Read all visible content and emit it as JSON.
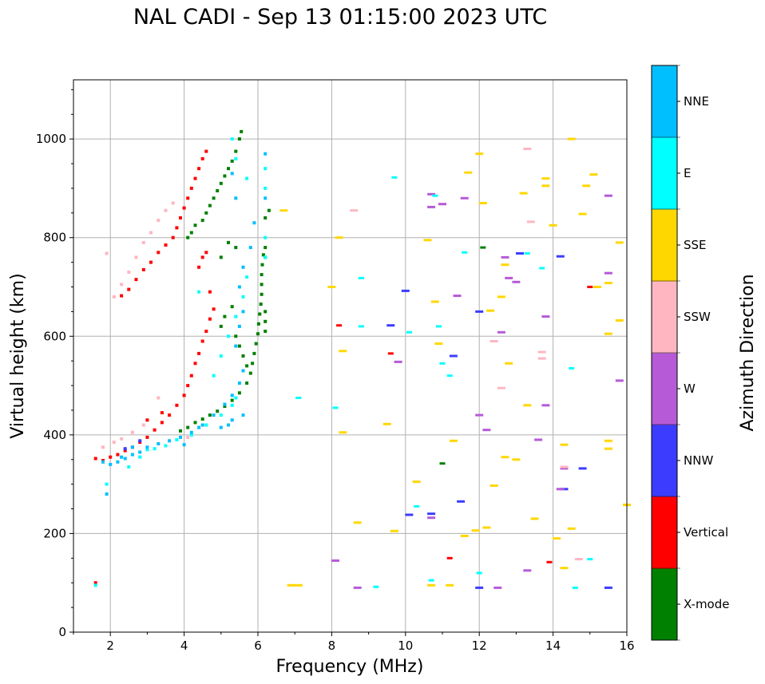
{
  "chart_data": {
    "type": "scatter",
    "title": "NAL CADI - Sep 13 01:15:00 2023 UTC",
    "xlabel": "Frequency (MHz)",
    "ylabel": "Virtual height (km)",
    "xlim": [
      1,
      16
    ],
    "ylim": [
      0,
      1120
    ],
    "xticks": [
      2,
      4,
      6,
      8,
      10,
      12,
      14,
      16
    ],
    "yticks": [
      0,
      200,
      400,
      600,
      800,
      1000
    ],
    "grid": true,
    "colorbar": {
      "label": "Azimuth Direction",
      "categories": [
        "X-mode",
        "Vertical",
        "NNW",
        "W",
        "SSW",
        "SSE",
        "E",
        "NNE"
      ],
      "colors": [
        "#008000",
        "#ff0000",
        "#3c3cff",
        "#b65ad8",
        "#ffb6c1",
        "#ffd700",
        "#00ffff",
        "#00bfff"
      ]
    },
    "series": [
      {
        "name": "X-mode",
        "points": [
          [
            3.9,
            408
          ],
          [
            4.1,
            415
          ],
          [
            4.3,
            425
          ],
          [
            4.5,
            432
          ],
          [
            4.7,
            440
          ],
          [
            4.9,
            448
          ],
          [
            5.1,
            458
          ],
          [
            5.3,
            470
          ],
          [
            5.5,
            485
          ],
          [
            5.7,
            505
          ],
          [
            5.8,
            525
          ],
          [
            5.85,
            545
          ],
          [
            5.9,
            565
          ],
          [
            5.95,
            585
          ],
          [
            6.0,
            605
          ],
          [
            6.02,
            625
          ],
          [
            6.05,
            645
          ],
          [
            6.08,
            665
          ],
          [
            6.1,
            685
          ],
          [
            6.1,
            705
          ],
          [
            6.1,
            725
          ],
          [
            6.12,
            745
          ],
          [
            6.15,
            765
          ],
          [
            5.0,
            620
          ],
          [
            5.1,
            640
          ],
          [
            5.3,
            660
          ],
          [
            5.4,
            600
          ],
          [
            5.5,
            580
          ],
          [
            5.6,
            560
          ],
          [
            5.7,
            540
          ],
          [
            6.2,
            650
          ],
          [
            6.2,
            630
          ],
          [
            6.2,
            610
          ],
          [
            6.2,
            760
          ],
          [
            6.2,
            780
          ],
          [
            4.1,
            800
          ],
          [
            4.2,
            810
          ],
          [
            4.3,
            825
          ],
          [
            4.5,
            835
          ],
          [
            4.6,
            850
          ],
          [
            4.7,
            865
          ],
          [
            4.8,
            880
          ],
          [
            4.9,
            895
          ],
          [
            5.0,
            910
          ],
          [
            5.1,
            925
          ],
          [
            5.2,
            940
          ],
          [
            5.3,
            955
          ],
          [
            5.4,
            975
          ],
          [
            5.5,
            1000
          ],
          [
            5.55,
            1015
          ],
          [
            6.2,
            840
          ],
          [
            6.3,
            855
          ],
          [
            5.0,
            760
          ],
          [
            5.2,
            790
          ],
          [
            5.4,
            780
          ],
          [
            11.0,
            342
          ],
          [
            12.1,
            780
          ]
        ]
      },
      {
        "name": "Vertical",
        "points": [
          [
            1.6,
            352
          ],
          [
            1.8,
            348
          ],
          [
            2.0,
            355
          ],
          [
            2.2,
            360
          ],
          [
            2.4,
            368
          ],
          [
            2.6,
            375
          ],
          [
            2.8,
            385
          ],
          [
            3.0,
            395
          ],
          [
            3.2,
            410
          ],
          [
            3.4,
            425
          ],
          [
            3.6,
            440
          ],
          [
            3.8,
            460
          ],
          [
            4.0,
            480
          ],
          [
            4.1,
            500
          ],
          [
            4.2,
            520
          ],
          [
            4.3,
            545
          ],
          [
            4.4,
            565
          ],
          [
            4.5,
            590
          ],
          [
            4.6,
            610
          ],
          [
            4.7,
            635
          ],
          [
            4.8,
            655
          ],
          [
            2.3,
            682
          ],
          [
            2.5,
            695
          ],
          [
            2.7,
            715
          ],
          [
            2.9,
            735
          ],
          [
            3.1,
            750
          ],
          [
            3.3,
            770
          ],
          [
            3.5,
            785
          ],
          [
            3.7,
            800
          ],
          [
            3.8,
            820
          ],
          [
            3.9,
            840
          ],
          [
            4.0,
            860
          ],
          [
            4.1,
            880
          ],
          [
            4.2,
            900
          ],
          [
            4.3,
            920
          ],
          [
            4.4,
            940
          ],
          [
            4.5,
            960
          ],
          [
            4.6,
            975
          ],
          [
            4.4,
            740
          ],
          [
            4.5,
            760
          ],
          [
            4.6,
            770
          ],
          [
            1.6,
            100
          ],
          [
            8.2,
            622
          ],
          [
            9.6,
            565
          ],
          [
            11.2,
            150
          ],
          [
            13.9,
            142
          ],
          [
            15.0,
            700
          ],
          [
            3.0,
            430
          ],
          [
            3.4,
            445
          ],
          [
            4.7,
            690
          ]
        ]
      },
      {
        "name": "NNW",
        "points": [
          [
            2.4,
            372
          ],
          [
            2.8,
            388
          ],
          [
            9.6,
            622
          ],
          [
            10.1,
            238
          ],
          [
            10.7,
            240
          ],
          [
            11.5,
            265
          ],
          [
            12.0,
            650
          ],
          [
            12.0,
            90
          ],
          [
            13.1,
            768
          ],
          [
            14.2,
            762
          ],
          [
            14.3,
            290
          ],
          [
            14.8,
            332
          ],
          [
            15.5,
            90
          ],
          [
            10.0,
            692
          ],
          [
            11.3,
            560
          ]
        ]
      },
      {
        "name": "W",
        "points": [
          [
            8.1,
            145
          ],
          [
            8.7,
            90
          ],
          [
            9.8,
            548
          ],
          [
            10.7,
            862
          ],
          [
            10.7,
            888
          ],
          [
            11.0,
            868
          ],
          [
            11.6,
            880
          ],
          [
            12.0,
            440
          ],
          [
            12.2,
            410
          ],
          [
            12.5,
            90
          ],
          [
            12.8,
            718
          ],
          [
            13.0,
            710
          ],
          [
            13.3,
            125
          ],
          [
            14.2,
            290
          ],
          [
            14.3,
            332
          ],
          [
            15.5,
            728
          ],
          [
            15.5,
            885
          ],
          [
            15.8,
            510
          ],
          [
            16.0,
            258
          ],
          [
            13.6,
            390
          ],
          [
            13.8,
            640
          ],
          [
            13.8,
            460
          ],
          [
            12.7,
            760
          ],
          [
            12.6,
            608
          ],
          [
            11.4,
            682
          ],
          [
            10.7,
            232
          ]
        ]
      },
      {
        "name": "SSW",
        "points": [
          [
            1.8,
            375
          ],
          [
            2.1,
            385
          ],
          [
            2.3,
            392
          ],
          [
            2.6,
            405
          ],
          [
            2.9,
            420
          ],
          [
            2.1,
            680
          ],
          [
            2.3,
            705
          ],
          [
            2.5,
            730
          ],
          [
            2.7,
            760
          ],
          [
            2.9,
            790
          ],
          [
            3.1,
            810
          ],
          [
            3.3,
            835
          ],
          [
            3.5,
            855
          ],
          [
            3.7,
            870
          ],
          [
            1.9,
            768
          ],
          [
            8.6,
            855
          ],
          [
            12.4,
            590
          ],
          [
            12.6,
            495
          ],
          [
            13.3,
            980
          ],
          [
            13.4,
            832
          ],
          [
            13.7,
            555
          ],
          [
            13.7,
            568
          ],
          [
            14.3,
            335
          ],
          [
            14.7,
            148
          ],
          [
            4.1,
            395
          ],
          [
            3.3,
            475
          ]
        ]
      },
      {
        "name": "SSE",
        "points": [
          [
            6.7,
            855
          ],
          [
            6.9,
            95
          ],
          [
            7.1,
            95
          ],
          [
            8.0,
            700
          ],
          [
            8.2,
            800
          ],
          [
            8.3,
            405
          ],
          [
            8.3,
            570
          ],
          [
            8.7,
            222
          ],
          [
            9.5,
            422
          ],
          [
            9.7,
            205
          ],
          [
            10.3,
            305
          ],
          [
            10.6,
            795
          ],
          [
            10.8,
            670
          ],
          [
            10.9,
            585
          ],
          [
            11.2,
            95
          ],
          [
            11.3,
            388
          ],
          [
            11.6,
            195
          ],
          [
            11.7,
            932
          ],
          [
            12.0,
            970
          ],
          [
            12.1,
            870
          ],
          [
            12.2,
            212
          ],
          [
            12.4,
            297
          ],
          [
            12.6,
            680
          ],
          [
            12.7,
            355
          ],
          [
            13.0,
            350
          ],
          [
            13.2,
            890
          ],
          [
            13.3,
            460
          ],
          [
            13.5,
            230
          ],
          [
            13.8,
            920
          ],
          [
            13.8,
            905
          ],
          [
            14.0,
            825
          ],
          [
            14.1,
            190
          ],
          [
            14.3,
            380
          ],
          [
            14.3,
            130
          ],
          [
            14.5,
            210
          ],
          [
            14.5,
            1000
          ],
          [
            14.8,
            848
          ],
          [
            14.9,
            905
          ],
          [
            15.1,
            928
          ],
          [
            15.2,
            700
          ],
          [
            15.5,
            708
          ],
          [
            15.5,
            388
          ],
          [
            15.5,
            372
          ],
          [
            15.5,
            605
          ],
          [
            15.8,
            632
          ],
          [
            15.8,
            790
          ],
          [
            16.0,
            258
          ],
          [
            10.7,
            95
          ],
          [
            11.9,
            206
          ],
          [
            12.8,
            545
          ],
          [
            12.3,
            652
          ],
          [
            12.7,
            745
          ]
        ]
      },
      {
        "name": "E",
        "points": [
          [
            1.6,
            95
          ],
          [
            1.9,
            300
          ],
          [
            2.5,
            335
          ],
          [
            2.8,
            355
          ],
          [
            3.0,
            370
          ],
          [
            3.2,
            372
          ],
          [
            3.5,
            378
          ],
          [
            3.8,
            390
          ],
          [
            4.2,
            400
          ],
          [
            4.6,
            420
          ],
          [
            5.0,
            440
          ],
          [
            5.3,
            460
          ],
          [
            5.4,
            475
          ],
          [
            5.3,
            480
          ],
          [
            4.8,
            520
          ],
          [
            5.0,
            560
          ],
          [
            5.2,
            600
          ],
          [
            5.4,
            640
          ],
          [
            5.6,
            680
          ],
          [
            5.7,
            720
          ],
          [
            6.2,
            760
          ],
          [
            6.2,
            800
          ],
          [
            6.2,
            900
          ],
          [
            6.2,
            940
          ],
          [
            5.7,
            920
          ],
          [
            5.4,
            960
          ],
          [
            5.3,
            1000
          ],
          [
            7.1,
            475
          ],
          [
            8.1,
            455
          ],
          [
            8.8,
            718
          ],
          [
            8.8,
            620
          ],
          [
            9.2,
            92
          ],
          [
            9.7,
            922
          ],
          [
            10.1,
            608
          ],
          [
            10.3,
            255
          ],
          [
            10.7,
            105
          ],
          [
            10.8,
            885
          ],
          [
            10.9,
            620
          ],
          [
            11.0,
            545
          ],
          [
            11.2,
            520
          ],
          [
            11.6,
            770
          ],
          [
            12.0,
            120
          ],
          [
            13.3,
            768
          ],
          [
            14.5,
            535
          ],
          [
            14.6,
            90
          ],
          [
            15.0,
            148
          ],
          [
            13.7,
            738
          ],
          [
            4.4,
            690
          ]
        ]
      },
      {
        "name": "NNE",
        "points": [
          [
            1.8,
            345
          ],
          [
            2.0,
            340
          ],
          [
            2.2,
            345
          ],
          [
            2.4,
            352
          ],
          [
            2.6,
            360
          ],
          [
            2.8,
            365
          ],
          [
            3.0,
            375
          ],
          [
            3.3,
            382
          ],
          [
            3.6,
            388
          ],
          [
            3.9,
            395
          ],
          [
            4.2,
            405
          ],
          [
            4.5,
            420
          ],
          [
            4.8,
            440
          ],
          [
            5.1,
            462
          ],
          [
            5.3,
            480
          ],
          [
            5.5,
            505
          ],
          [
            5.6,
            530
          ],
          [
            5.3,
            430
          ],
          [
            5.6,
            440
          ],
          [
            5.0,
            415
          ],
          [
            5.4,
            580
          ],
          [
            5.5,
            620
          ],
          [
            5.6,
            650
          ],
          [
            5.5,
            700
          ],
          [
            5.6,
            740
          ],
          [
            5.8,
            780
          ],
          [
            5.9,
            830
          ],
          [
            6.2,
            880
          ],
          [
            5.4,
            880
          ],
          [
            5.3,
            930
          ],
          [
            6.2,
            970
          ],
          [
            1.9,
            280
          ],
          [
            2.3,
            355
          ],
          [
            2.6,
            375
          ],
          [
            4.0,
            380
          ],
          [
            4.4,
            415
          ],
          [
            5.2,
            420
          ]
        ]
      }
    ]
  }
}
